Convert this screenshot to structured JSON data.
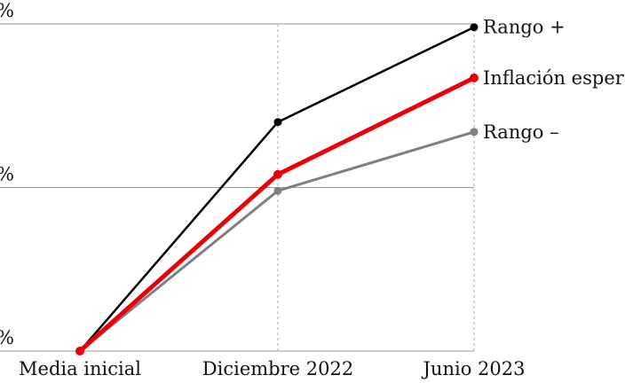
{
  "chart_data": {
    "type": "line",
    "categories": [
      "Media inicial",
      "Diciembre 2022",
      "Junio 2023"
    ],
    "series": [
      {
        "name": "Rango +",
        "color": "#000000",
        "values": [
          0,
          1.4,
          1.98
        ]
      },
      {
        "name": "Inflación esperada",
        "color": "#e8000b",
        "values": [
          0,
          1.08,
          1.67
        ]
      },
      {
        "name": "Rango –",
        "color": "#808080",
        "values": [
          0,
          0.98,
          1.34
        ]
      }
    ],
    "ylim": [
      0,
      2
    ],
    "yticks": [
      {
        "value": 0,
        "label": "%"
      },
      {
        "value": 1,
        "label": "%"
      },
      {
        "value": 2,
        "label": "%"
      }
    ],
    "grid": true
  }
}
